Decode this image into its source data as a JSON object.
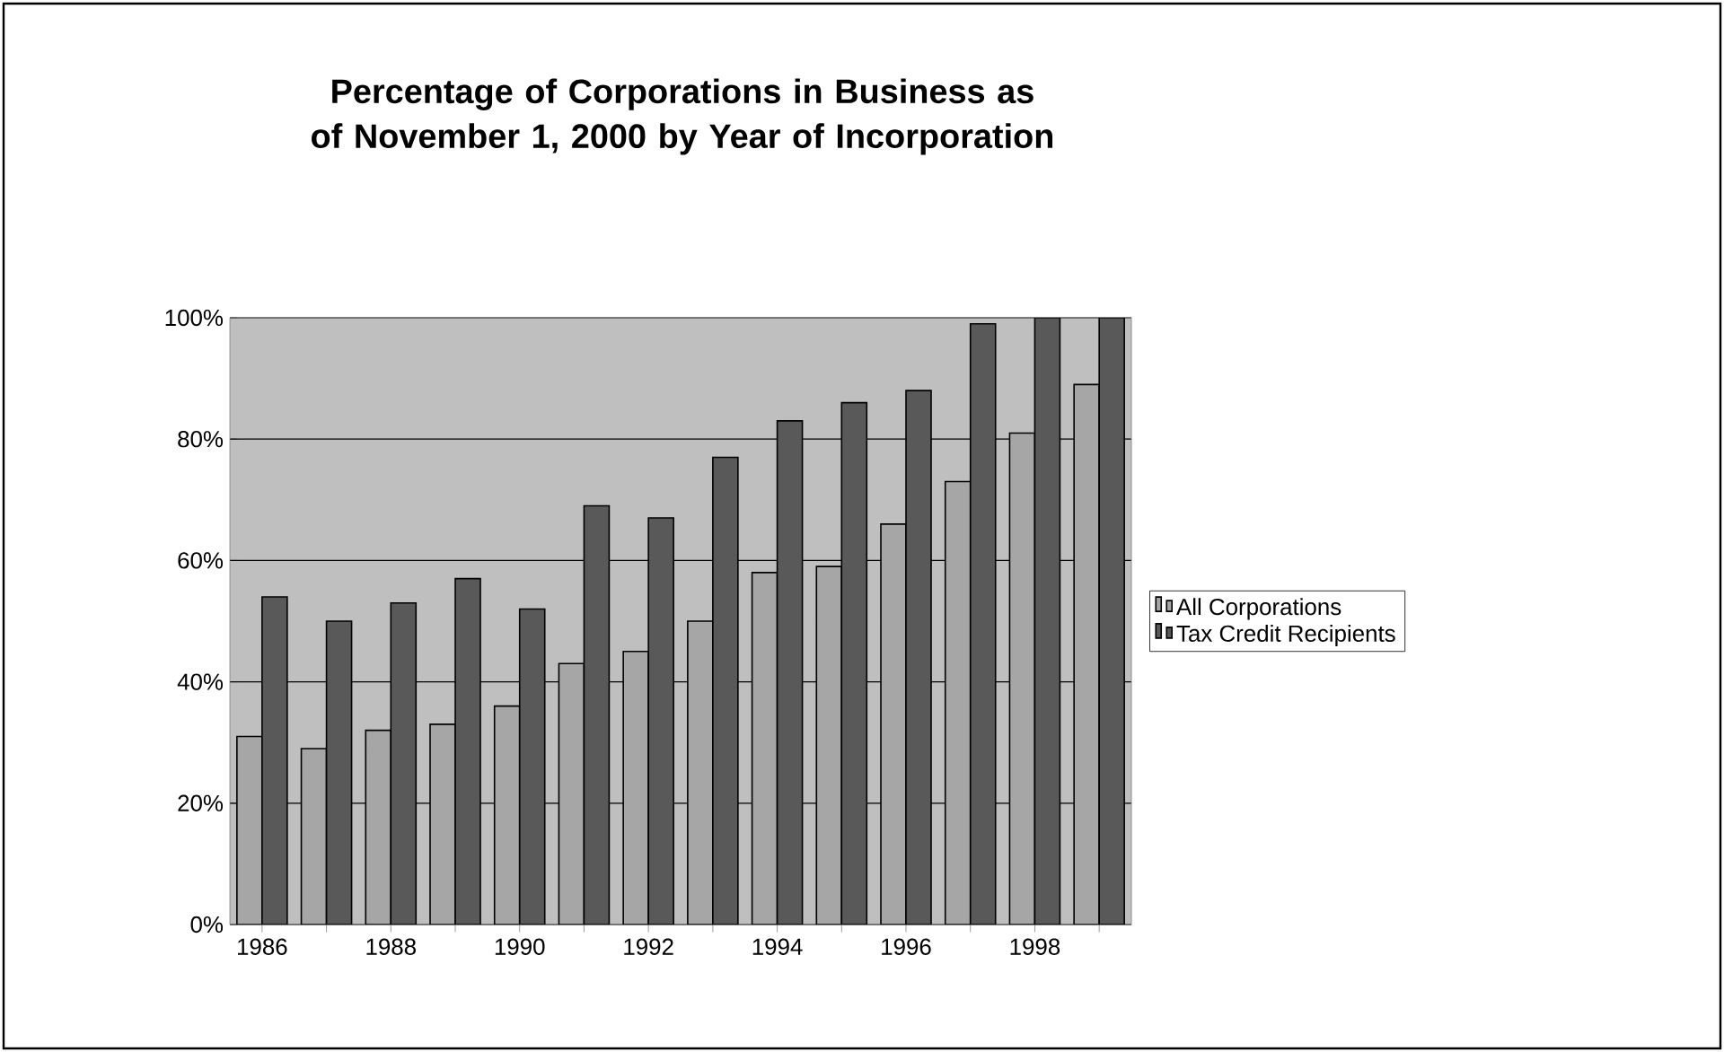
{
  "chart_data": {
    "type": "bar",
    "title": "Percentage of Corporations in Business as of November 1, 2000 by Year of Incorporation",
    "categories": [
      "1986",
      null,
      "1988",
      null,
      "1990",
      null,
      "1992",
      null,
      "1994",
      null,
      "1996",
      null,
      "1998",
      null
    ],
    "series": [
      {
        "name": "All Corporations",
        "color": "#a6a6a6",
        "values": [
          31,
          29,
          32,
          33,
          36,
          43,
          45,
          50,
          58,
          59,
          66,
          73,
          81,
          89
        ]
      },
      {
        "name": "Tax Credit Recipients",
        "color": "#595959",
        "values": [
          54,
          50,
          53,
          57,
          52,
          69,
          67,
          77,
          83,
          86,
          88,
          99,
          100,
          100
        ]
      }
    ],
    "ylim": [
      0,
      100
    ],
    "yticks": [
      {
        "value": 0,
        "label": "0%"
      },
      {
        "value": 20,
        "label": "20%"
      },
      {
        "value": 40,
        "label": "40%"
      },
      {
        "value": 60,
        "label": "60%"
      },
      {
        "value": 80,
        "label": "80%"
      },
      {
        "value": 100,
        "label": "100%"
      }
    ],
    "grid": "y",
    "legend": "right"
  }
}
